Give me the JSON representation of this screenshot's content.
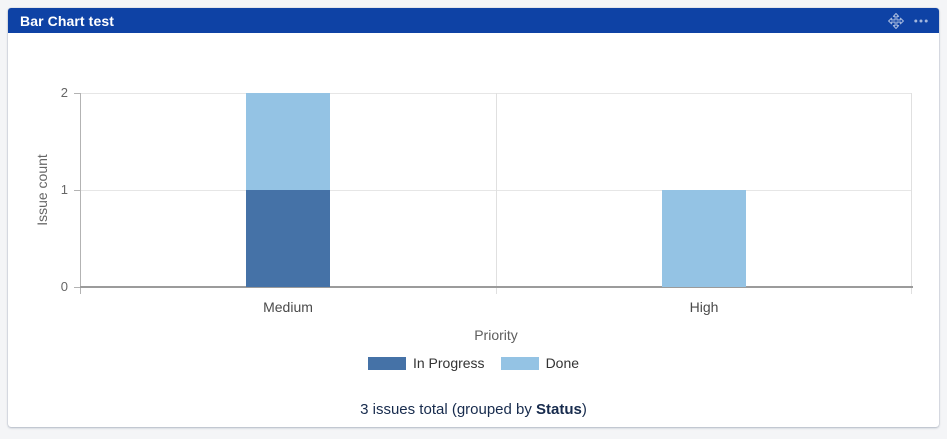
{
  "widget": {
    "title": "Bar Chart test",
    "header_bg": "#0e42a5",
    "icons": {
      "move": "move-icon",
      "more_options": "more-options-icon"
    }
  },
  "chart_data": {
    "type": "bar",
    "stacked": true,
    "categories": [
      "Medium",
      "High"
    ],
    "series": [
      {
        "name": "In Progress",
        "color": "#4572a7",
        "values": [
          1,
          0
        ]
      },
      {
        "name": "Done",
        "color": "#94c3e4",
        "values": [
          1,
          1
        ]
      }
    ],
    "title": "",
    "xlabel": "Priority",
    "ylabel": "Issue count",
    "ylim": [
      0,
      2
    ],
    "yticks": [
      0,
      1,
      2
    ],
    "grid": true,
    "legend_position": "bottom"
  },
  "footer": {
    "text_prefix": "3 issues total (grouped by ",
    "group_by": "Status",
    "text_suffix": ")"
  },
  "colors": {
    "page_bg": "#f4f5f7",
    "card_bg": "#ffffff",
    "footer_text": "#172b4d",
    "axis_label": "#666666"
  }
}
